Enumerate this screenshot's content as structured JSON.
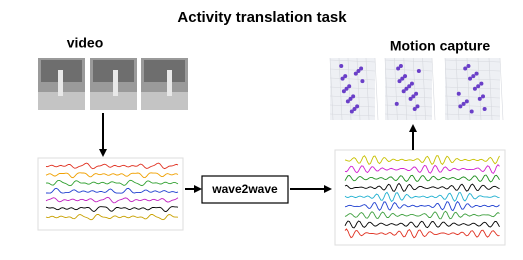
{
  "title": "Activity translation task",
  "nodes": [
    {
      "label": "video"
    },
    {
      "label": "wave2wave"
    },
    {
      "label": "Motion capture"
    }
  ]
}
